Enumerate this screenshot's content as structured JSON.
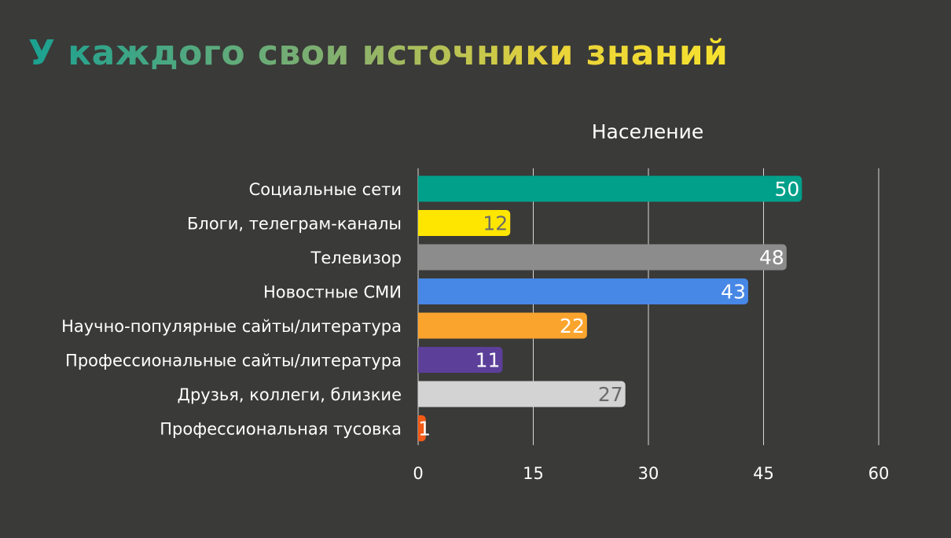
{
  "slide": {
    "title": "У каждого свои источники знаний"
  },
  "chart_data": {
    "type": "bar",
    "orientation": "horizontal",
    "title": "Население",
    "xlabel": "",
    "ylabel": "",
    "categories": [
      "Социальные сети",
      "Блоги, телеграм-каналы",
      "Телевизор",
      "Новостные СМИ",
      "Научно-популярные сайты/литература",
      "Профессиональные сайты/литература",
      "Друзья, коллеги, близкие",
      "Профессиональная тусовка"
    ],
    "values": [
      50,
      12,
      48,
      43,
      22,
      11,
      27,
      1
    ],
    "colors": [
      "#00a08a",
      "#ffe600",
      "#8c8c8c",
      "#4787e6",
      "#fba42d",
      "#5c3f99",
      "#d3d3d3",
      "#f35b17"
    ],
    "label_colors": [
      "#ffffff",
      "#6a6a6a",
      "#ffffff",
      "#ffffff",
      "#ffffff",
      "#ffffff",
      "#6a6a6a",
      "#ffffff"
    ],
    "xlim": [
      0,
      60
    ],
    "xticks": [
      0,
      15,
      30,
      45,
      60
    ],
    "grid": true,
    "data_labels": true
  }
}
